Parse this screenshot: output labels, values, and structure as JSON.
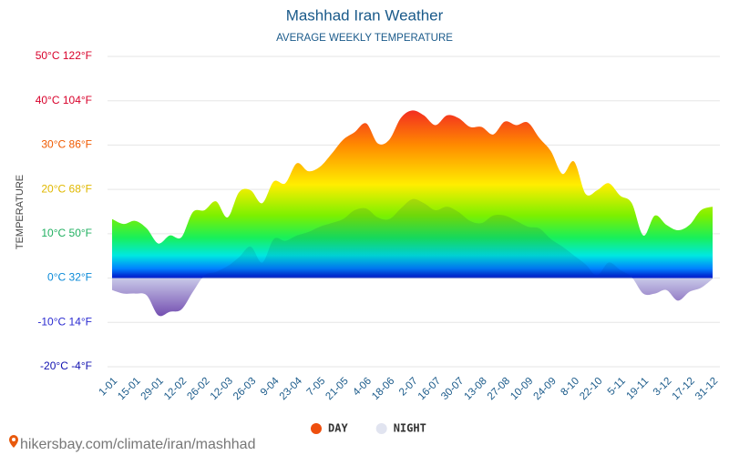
{
  "chart_data": {
    "type": "area",
    "title": "Mashhad Iran Weather",
    "subtitle": "AVERAGE WEEKLY TEMPERATURE",
    "y_label": "TEMPERATURE",
    "source": "hikersbay.com/climate/iran/mashhad",
    "categories": [
      "1-01",
      null,
      "15-01",
      null,
      "29-01",
      null,
      "12-02",
      null,
      "26-02",
      null,
      "12-03",
      null,
      "26-03",
      null,
      "9-04",
      null,
      "23-04",
      null,
      "7-05",
      null,
      "21-05",
      null,
      "4-06",
      null,
      "18-06",
      null,
      "2-07",
      null,
      "16-07",
      null,
      "30-07",
      null,
      "13-08",
      null,
      "27-08",
      null,
      "10-09",
      null,
      "24-09",
      null,
      "8-10",
      null,
      "22-10",
      null,
      "5-11",
      null,
      "19-11",
      null,
      "3-12",
      null,
      "17-12",
      null,
      "31-12"
    ],
    "series": [
      {
        "name": "DAY",
        "color": "#ee4f0e",
        "values": [
          13.3,
          12.2,
          12.9,
          11.2,
          7.8,
          9.6,
          9.2,
          14.9,
          15.3,
          17.3,
          13.7,
          19.4,
          19.8,
          16.9,
          21.8,
          21.4,
          25.9,
          24.1,
          25.1,
          28,
          31.2,
          32.9,
          34.9,
          30.4,
          31.2,
          36.1,
          37.8,
          36.7,
          34.5,
          36.7,
          36.1,
          34.1,
          34.1,
          32.4,
          35.3,
          34.5,
          35.1,
          31.6,
          28.6,
          23.5,
          26.3,
          19,
          19.8,
          21.4,
          18.6,
          16.9,
          9.6,
          14.1,
          12,
          10.8,
          12,
          15.3,
          16.1
        ]
      },
      {
        "name": "NIGHT",
        "color": "#e1e4f0",
        "values": [
          -2.7,
          -3.5,
          -3.5,
          -3.9,
          -8.4,
          -7.6,
          -7.1,
          -3.1,
          0.6,
          1.4,
          2.7,
          4.7,
          7.1,
          3.5,
          8.8,
          8.4,
          9.6,
          10.4,
          11.6,
          12.4,
          13.3,
          15.3,
          15.7,
          13.7,
          13.3,
          15.7,
          17.8,
          16.9,
          15.3,
          16.1,
          14.9,
          12.9,
          12.4,
          14.1,
          14.1,
          12.9,
          11.6,
          11.2,
          8.8,
          7.1,
          5.1,
          3.1,
          0.6,
          3.5,
          1.8,
          0.2,
          -3.5,
          -3.5,
          -2.7,
          -5.1,
          -3.1,
          -2.2,
          -0.2
        ]
      }
    ],
    "ylim": [
      -20,
      50
    ],
    "yticks": [
      {
        "value": -20,
        "label": "-20°C -4°F"
      },
      {
        "value": -10,
        "label": "-10°C 14°F"
      },
      {
        "value": 0,
        "label": "0°C 32°F"
      },
      {
        "value": 10,
        "label": "10°C 50°F"
      },
      {
        "value": 20,
        "label": "20°C 68°F"
      },
      {
        "value": 30,
        "label": "30°C 86°F"
      },
      {
        "value": 40,
        "label": "40°C 104°F"
      },
      {
        "value": 50,
        "label": "50°C 122°F"
      }
    ],
    "grid": true
  }
}
